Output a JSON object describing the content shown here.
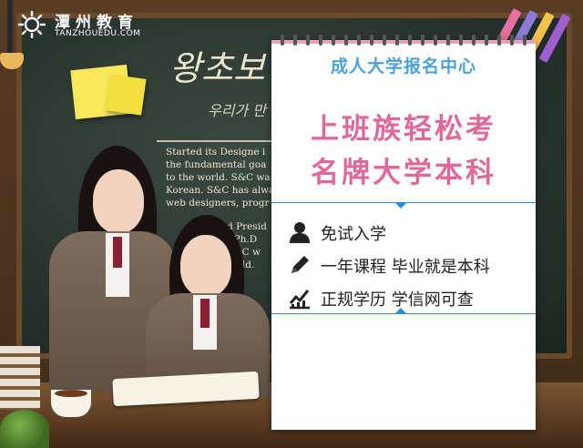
{
  "logo": {
    "name_cn": "潭州教育",
    "name_en": "TANZHOUEDU.COM"
  },
  "chalkboard": {
    "korean_title": "왕초보",
    "korean_sub": "우리가 만",
    "english_lines": [
      "Started its Designe i",
      "the fundamental goa",
      "to the world. S&C wa",
      "Korean. S&C has alwa",
      "web designers, progr"
    ],
    "english_lines_lower": [
      "and Presid",
      "the Ph.D",
      "k. S&C w",
      "e world."
    ]
  },
  "card": {
    "subtitle": "成人大学报名中心",
    "title_line1": "上班族轻松考",
    "title_line2": "名牌大学本科",
    "features": [
      {
        "icon": "person-icon",
        "text": "免试入学"
      },
      {
        "icon": "pencil-icon",
        "text": "一年课程  毕业就是本科"
      },
      {
        "icon": "chart-check-icon",
        "text": "正规学历  学信网可查"
      }
    ]
  },
  "colors": {
    "subtitle": "#4ba1d9",
    "title": "#e0679a",
    "divider": "#2f8fd6"
  }
}
